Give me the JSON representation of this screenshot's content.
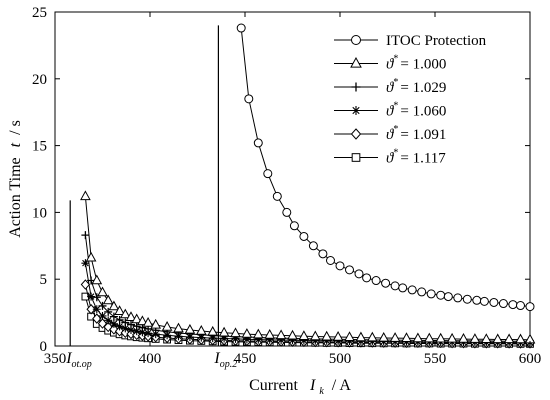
{
  "chart_data": {
    "type": "line",
    "xlabel": "Current",
    "xlabel_symbol": "I",
    "xlabel_symbol_sub": "k",
    "xlabel_unit": "/ A",
    "ylabel": "Action Time",
    "ylabel_symbol": "t",
    "ylabel_unit": "/ s",
    "xlim": [
      350,
      600
    ],
    "ylim": [
      0,
      25
    ],
    "xticks": [
      350,
      400,
      450,
      500,
      550,
      600
    ],
    "yticks": [
      0,
      5,
      10,
      15,
      20,
      25
    ],
    "grid": false,
    "legend_position": "top-right",
    "color": "#000000",
    "annotations": [
      {
        "text": "I",
        "sub": "ot.op",
        "x": 358,
        "line_top": 10.9
      },
      {
        "text": "I",
        "sub": "op.2",
        "x": 436,
        "line_top": 24.0
      }
    ],
    "series": [
      {
        "name": "ITOC Protection",
        "legend_symbol": "",
        "legend_sup": "",
        "legend_value": "",
        "marker": "circle",
        "x": [
          448,
          452,
          457,
          462,
          467,
          472,
          476,
          481,
          486,
          491,
          495,
          500,
          505,
          510,
          514,
          519,
          524,
          529,
          533,
          538,
          543,
          548,
          553,
          557,
          562,
          567,
          572,
          576,
          581,
          586,
          591,
          595,
          600
        ],
        "y": [
          23.8,
          18.5,
          15.2,
          12.9,
          11.2,
          10.0,
          9.0,
          8.2,
          7.5,
          6.9,
          6.4,
          6.0,
          5.7,
          5.4,
          5.1,
          4.9,
          4.7,
          4.5,
          4.35,
          4.2,
          4.05,
          3.9,
          3.8,
          3.7,
          3.6,
          3.5,
          3.42,
          3.34,
          3.26,
          3.18,
          3.1,
          3.03,
          2.95
        ]
      },
      {
        "name": "= 1.000",
        "legend_symbol": "ϑ",
        "legend_sup": "*",
        "legend_value": "= 1.000",
        "marker": "triangle",
        "x": [
          366,
          369,
          372,
          375,
          378,
          381,
          384,
          387,
          390,
          393,
          396,
          399,
          403,
          409,
          415,
          421,
          427,
          433,
          439,
          445,
          451,
          457,
          463,
          469,
          475,
          481,
          487,
          493,
          499,
          505,
          511,
          517,
          523,
          529,
          535,
          541,
          547,
          553,
          559,
          565,
          571,
          577,
          583,
          589,
          595,
          600
        ],
        "y": [
          11.2,
          6.6,
          4.9,
          4.0,
          3.4,
          2.95,
          2.6,
          2.35,
          2.15,
          1.98,
          1.84,
          1.72,
          1.58,
          1.42,
          1.3,
          1.2,
          1.12,
          1.05,
          0.99,
          0.94,
          0.89,
          0.85,
          0.82,
          0.79,
          0.76,
          0.73,
          0.71,
          0.69,
          0.67,
          0.65,
          0.63,
          0.62,
          0.6,
          0.59,
          0.58,
          0.56,
          0.55,
          0.54,
          0.53,
          0.52,
          0.51,
          0.5,
          0.49,
          0.49,
          0.48,
          0.47
        ]
      },
      {
        "name": "= 1.029",
        "legend_symbol": "ϑ",
        "legend_sup": "*",
        "legend_value": "= 1.029",
        "marker": "plus",
        "x": [
          366,
          369,
          372,
          375,
          378,
          381,
          384,
          387,
          390,
          393,
          396,
          399,
          403,
          409,
          415,
          421,
          427,
          433,
          439,
          445,
          451,
          457,
          463,
          469,
          475,
          481,
          487,
          493,
          499,
          505,
          511,
          517,
          523,
          529,
          535,
          541,
          547,
          553,
          559,
          565,
          571,
          577,
          583,
          589,
          595,
          600
        ],
        "y": [
          8.3,
          4.9,
          3.65,
          3.0,
          2.55,
          2.2,
          1.95,
          1.76,
          1.6,
          1.48,
          1.37,
          1.28,
          1.18,
          1.06,
          0.97,
          0.9,
          0.84,
          0.78,
          0.74,
          0.7,
          0.67,
          0.64,
          0.61,
          0.59,
          0.57,
          0.55,
          0.53,
          0.52,
          0.5,
          0.49,
          0.48,
          0.46,
          0.45,
          0.44,
          0.43,
          0.42,
          0.41,
          0.41,
          0.4,
          0.39,
          0.38,
          0.38,
          0.37,
          0.36,
          0.36,
          0.35
        ]
      },
      {
        "name": "= 1.060",
        "legend_symbol": "ϑ",
        "legend_sup": "*",
        "legend_value": "= 1.060",
        "marker": "asterisk",
        "x": [
          366,
          369,
          372,
          375,
          378,
          381,
          384,
          387,
          390,
          393,
          396,
          399,
          403,
          409,
          415,
          421,
          427,
          433,
          439,
          445,
          451,
          457,
          463,
          469,
          475,
          481,
          487,
          493,
          499,
          505,
          511,
          517,
          523,
          529,
          535,
          541,
          547,
          553,
          559,
          565,
          571,
          577,
          583,
          589,
          595,
          600
        ],
        "y": [
          6.2,
          3.7,
          2.75,
          2.25,
          1.92,
          1.66,
          1.47,
          1.32,
          1.2,
          1.11,
          1.03,
          0.96,
          0.89,
          0.8,
          0.73,
          0.67,
          0.63,
          0.59,
          0.56,
          0.53,
          0.5,
          0.48,
          0.46,
          0.44,
          0.43,
          0.41,
          0.4,
          0.39,
          0.38,
          0.37,
          0.36,
          0.35,
          0.34,
          0.33,
          0.32,
          0.32,
          0.31,
          0.3,
          0.3,
          0.29,
          0.29,
          0.28,
          0.28,
          0.27,
          0.27,
          0.26
        ]
      },
      {
        "name": "= 1.091",
        "legend_symbol": "ϑ",
        "legend_sup": "*",
        "legend_value": "= 1.091",
        "marker": "diamond",
        "x": [
          366,
          369,
          372,
          375,
          378,
          381,
          384,
          387,
          390,
          393,
          396,
          399,
          403,
          409,
          415,
          421,
          427,
          433,
          439,
          445,
          451,
          457,
          463,
          469,
          475,
          481,
          487,
          493,
          499,
          505,
          511,
          517,
          523,
          529,
          535,
          541,
          547,
          553,
          559,
          565,
          571,
          577,
          583,
          589,
          595,
          600
        ],
        "y": [
          4.6,
          2.75,
          2.05,
          1.68,
          1.43,
          1.24,
          1.1,
          0.99,
          0.9,
          0.83,
          0.77,
          0.72,
          0.66,
          0.6,
          0.55,
          0.5,
          0.47,
          0.44,
          0.42,
          0.4,
          0.38,
          0.36,
          0.35,
          0.33,
          0.32,
          0.31,
          0.3,
          0.29,
          0.28,
          0.27,
          0.27,
          0.26,
          0.25,
          0.25,
          0.24,
          0.24,
          0.23,
          0.23,
          0.22,
          0.22,
          0.21,
          0.21,
          0.21,
          0.2,
          0.2,
          0.2
        ]
      },
      {
        "name": "= 1.117",
        "legend_symbol": "ϑ",
        "legend_sup": "*",
        "legend_value": "= 1.117",
        "marker": "square",
        "x": [
          366,
          369,
          372,
          375,
          378,
          381,
          384,
          387,
          390,
          393,
          396,
          399,
          403,
          409,
          415,
          421,
          427,
          433,
          439,
          445,
          451,
          457,
          463,
          469,
          475,
          481,
          487,
          493,
          499,
          505,
          511,
          517,
          523,
          529,
          535,
          541,
          547,
          553,
          559,
          565,
          571,
          577,
          583,
          589,
          595,
          600
        ],
        "y": [
          3.7,
          2.2,
          1.65,
          1.35,
          1.15,
          1.0,
          0.88,
          0.79,
          0.72,
          0.66,
          0.62,
          0.58,
          0.53,
          0.48,
          0.44,
          0.4,
          0.38,
          0.35,
          0.33,
          0.32,
          0.3,
          0.29,
          0.28,
          0.27,
          0.26,
          0.25,
          0.24,
          0.23,
          0.23,
          0.22,
          0.21,
          0.21,
          0.2,
          0.2,
          0.19,
          0.19,
          0.19,
          0.18,
          0.18,
          0.18,
          0.17,
          0.17,
          0.17,
          0.16,
          0.16,
          0.16
        ]
      }
    ]
  }
}
